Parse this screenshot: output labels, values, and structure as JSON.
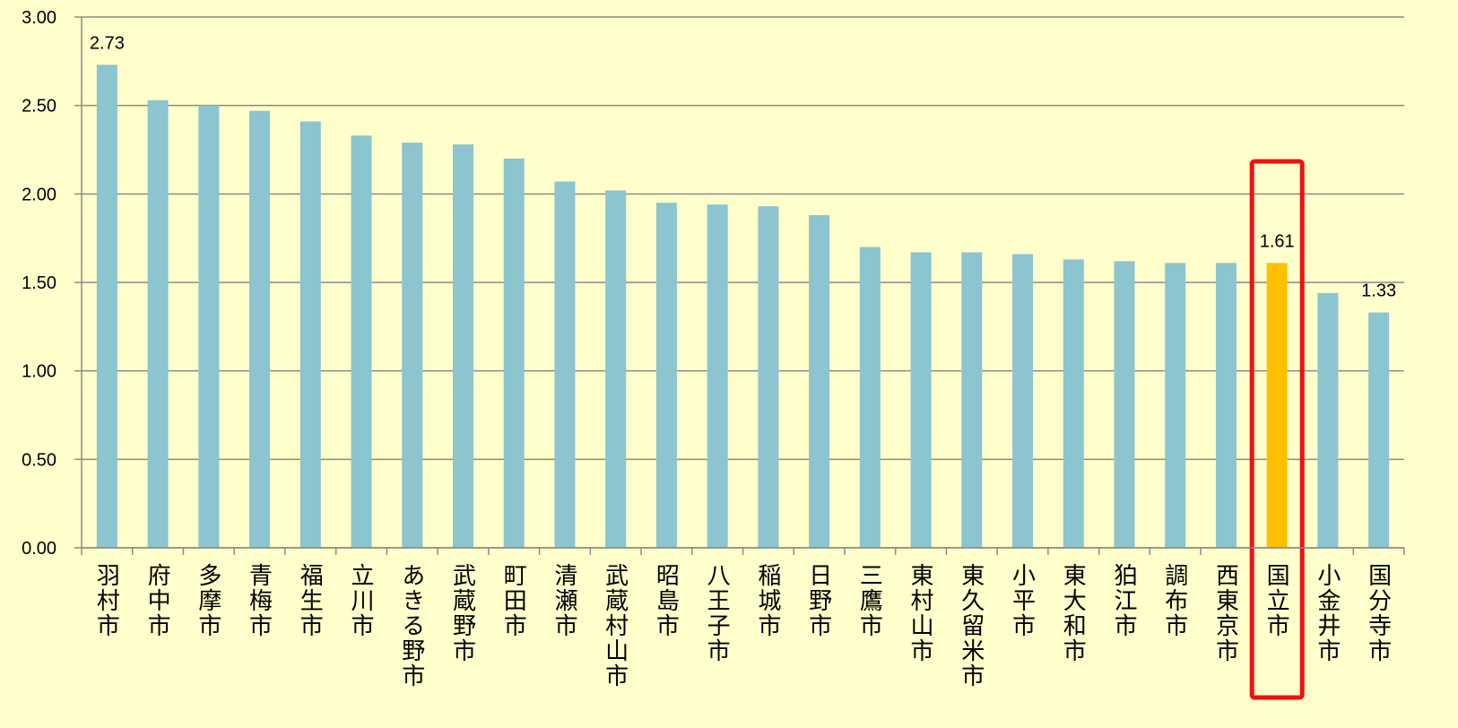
{
  "chart_data": {
    "type": "bar",
    "categories": [
      "羽村市",
      "府中市",
      "多摩市",
      "青梅市",
      "福生市",
      "立川市",
      "あきる野市",
      "武蔵野市",
      "町田市",
      "清瀬市",
      "武蔵村山市",
      "昭島市",
      "八王子市",
      "稲城市",
      "日野市",
      "三鷹市",
      "東村山市",
      "東久留米市",
      "小平市",
      "東大和市",
      "狛江市",
      "調布市",
      "西東京市",
      "国立市",
      "小金井市",
      "国分寺市"
    ],
    "values": [
      2.73,
      2.53,
      2.5,
      2.47,
      2.41,
      2.33,
      2.29,
      2.28,
      2.2,
      2.07,
      2.02,
      1.95,
      1.94,
      1.93,
      1.88,
      1.7,
      1.67,
      1.67,
      1.66,
      1.63,
      1.62,
      1.61,
      1.61,
      1.61,
      1.44,
      1.33
    ],
    "value_labels": [
      "2.73",
      null,
      null,
      null,
      null,
      null,
      null,
      null,
      null,
      null,
      null,
      null,
      null,
      null,
      null,
      null,
      null,
      null,
      null,
      null,
      null,
      null,
      null,
      "1.61",
      null,
      "1.33"
    ],
    "colors": [
      "#8cc4cf",
      "#8cc4cf",
      "#8cc4cf",
      "#8cc4cf",
      "#8cc4cf",
      "#8cc4cf",
      "#8cc4cf",
      "#8cc4cf",
      "#8cc4cf",
      "#8cc4cf",
      "#8cc4cf",
      "#8cc4cf",
      "#8cc4cf",
      "#8cc4cf",
      "#8cc4cf",
      "#8cc4cf",
      "#8cc4cf",
      "#8cc4cf",
      "#8cc4cf",
      "#8cc4cf",
      "#8cc4cf",
      "#8cc4cf",
      "#8cc4cf",
      "#ffc000",
      "#8cc4cf",
      "#8cc4cf"
    ],
    "highlight": "国立市",
    "highlight_color": "#ee1111",
    "ylim": [
      0,
      3
    ],
    "yticks": [
      {
        "value": 0,
        "label": "0.00"
      },
      {
        "value": 0.5,
        "label": "0.50"
      },
      {
        "value": 1,
        "label": "1.00"
      },
      {
        "value": 1.5,
        "label": "1.50"
      },
      {
        "value": 2,
        "label": "2.00"
      },
      {
        "value": 2.5,
        "label": "2.50"
      },
      {
        "value": 3,
        "label": "3.00"
      }
    ],
    "grid": true
  }
}
